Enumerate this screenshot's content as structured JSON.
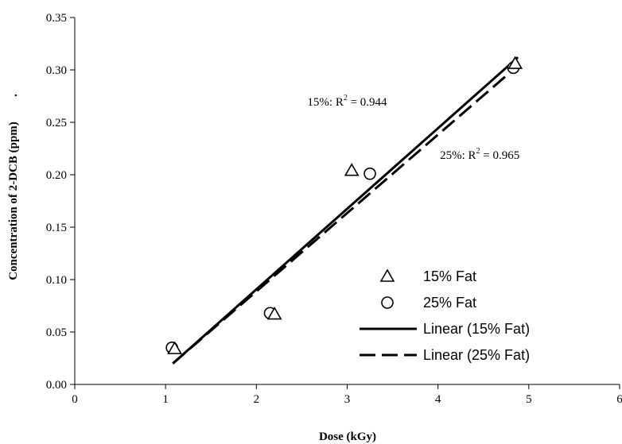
{
  "chart_data": {
    "type": "scatter",
    "xlabel": "Dose (kGy)",
    "ylabel": "Concentration of 2-DCB (ppm)",
    "ylabel_suffix": ".",
    "xlim": [
      0,
      6
    ],
    "ylim": [
      0,
      0.35
    ],
    "x_ticks": [
      "0",
      "1",
      "2",
      "3",
      "4",
      "5",
      "6"
    ],
    "y_ticks": [
      "0.00",
      "0.05",
      "0.10",
      "0.15",
      "0.20",
      "0.25",
      "0.30",
      "0.35"
    ],
    "grid": false,
    "legend_placement": "bottom-right",
    "series": [
      {
        "name": "15% Fat",
        "marker": "triangle",
        "points": [
          {
            "x": 1.1,
            "y": 0.034
          },
          {
            "x": 2.2,
            "y": 0.067
          },
          {
            "x": 3.05,
            "y": 0.204
          },
          {
            "x": 4.85,
            "y": 0.306
          }
        ]
      },
      {
        "name": "25% Fat",
        "marker": "circle",
        "points": [
          {
            "x": 1.07,
            "y": 0.035
          },
          {
            "x": 2.15,
            "y": 0.068
          },
          {
            "x": 3.25,
            "y": 0.201
          },
          {
            "x": 4.83,
            "y": 0.302
          }
        ]
      }
    ],
    "trendlines": [
      {
        "name": "Linear (15% Fat)",
        "style": "solid",
        "x": [
          1.08,
          4.88
        ],
        "y": [
          0.02,
          0.312
        ]
      },
      {
        "name": "Linear (25% Fat)",
        "style": "dashed",
        "x": [
          1.08,
          4.88
        ],
        "y": [
          0.02,
          0.304
        ]
      }
    ],
    "annotations": [
      {
        "prefix": "15%: R",
        "sup": "2",
        "suffix": " = 0.944",
        "x": 3.0,
        "y": 0.266
      },
      {
        "prefix": "25%: R",
        "sup": "2",
        "suffix": " = 0.965",
        "x": 4.46,
        "y": 0.215
      }
    ]
  }
}
